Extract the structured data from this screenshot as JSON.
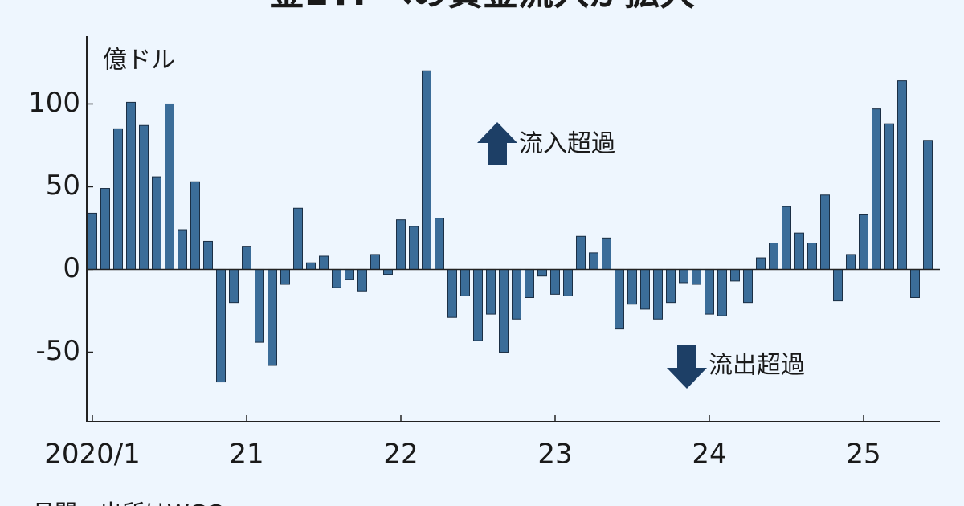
{
  "chart_data": {
    "type": "bar",
    "title": "金ETFへの資金流入が拡大",
    "unit_label": "億ドル",
    "annotations": [
      "流入超過",
      "流出超過"
    ],
    "source": "月間。出所はWGC",
    "categories": [
      "2020/1",
      null,
      null,
      null,
      null,
      null,
      null,
      null,
      null,
      null,
      null,
      null,
      "21",
      null,
      null,
      null,
      null,
      null,
      null,
      null,
      null,
      null,
      null,
      null,
      "22",
      null,
      null,
      null,
      null,
      null,
      null,
      null,
      null,
      null,
      null,
      null,
      "23",
      null,
      null,
      null,
      null,
      null,
      null,
      null,
      null,
      null,
      null,
      null,
      "24",
      null,
      null,
      null,
      null,
      null,
      null,
      null,
      null,
      null,
      null,
      null,
      "25",
      null,
      null,
      null,
      null,
      null
    ],
    "values": [
      34,
      49,
      85,
      101,
      87,
      56,
      100,
      24,
      53,
      17,
      -68,
      -20,
      14,
      -44,
      -58,
      -9,
      37,
      4,
      8,
      -11,
      -6,
      -13,
      9,
      -3,
      30,
      26,
      120,
      31,
      -29,
      -16,
      -43,
      -27,
      -50,
      -30,
      -17,
      -4,
      -15,
      -16,
      20,
      10,
      19,
      -36,
      -21,
      -24,
      -30,
      -20,
      -8,
      -9,
      -27,
      -28,
      -7,
      -20,
      7,
      16,
      38,
      22,
      16,
      45,
      -19,
      9,
      33,
      97,
      88,
      114,
      -17,
      78
    ],
    "color": "#3b6d99",
    "ylim": [
      -92,
      141
    ],
    "yticks": [
      -50,
      0,
      50,
      100
    ],
    "grid": false
  }
}
